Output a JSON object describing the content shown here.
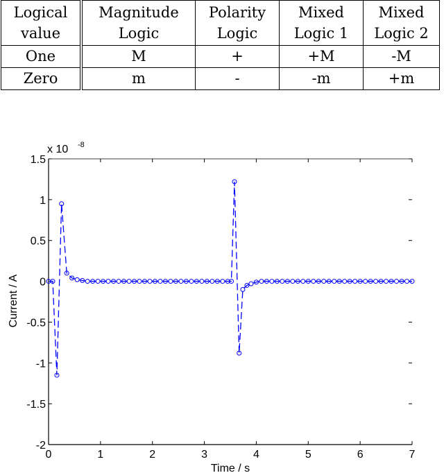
{
  "table": {
    "headers": [
      [
        "Logical",
        "value"
      ],
      [
        "Magnitude",
        "Logic"
      ],
      [
        "Polarity",
        "Logic"
      ],
      [
        "Mixed",
        "Logic 1"
      ],
      [
        "Mixed",
        "Logic 2"
      ]
    ],
    "rows": [
      [
        "One",
        "M",
        "+",
        "+M",
        "-M"
      ],
      [
        "Zero",
        "m",
        "-",
        "-m",
        "+m"
      ]
    ]
  },
  "chart_data": {
    "type": "line",
    "title": "",
    "xlabel": "Time / s",
    "ylabel": "Current / A",
    "y_exponent_base": "x 10",
    "y_exponent_power": "-8",
    "xlim": [
      0,
      7
    ],
    "ylim": [
      -2,
      1.5
    ],
    "xticks": [
      0,
      1,
      2,
      3,
      4,
      5,
      6,
      7
    ],
    "yticks": [
      1.5,
      1,
      0.5,
      0,
      -0.5,
      -1,
      -1.5,
      -2
    ],
    "grid": false,
    "series": [
      {
        "name": "current",
        "color": "#0000ff",
        "line_style": "dashed",
        "marker": "circle",
        "x": [
          0,
          0.08,
          0.16,
          0.25,
          0.35,
          0.45,
          0.55,
          0.65,
          0.75,
          0.85,
          0.95,
          1.05,
          1.15,
          1.25,
          1.35,
          1.45,
          1.55,
          1.65,
          1.75,
          1.85,
          1.95,
          2.05,
          2.15,
          2.25,
          2.35,
          2.45,
          2.55,
          2.65,
          2.75,
          2.85,
          2.95,
          3.05,
          3.15,
          3.25,
          3.35,
          3.45,
          3.52,
          3.58,
          3.67,
          3.74,
          3.82,
          3.9,
          4.0,
          4.1,
          4.2,
          4.3,
          4.4,
          4.5,
          4.6,
          4.7,
          4.8,
          4.9,
          5.0,
          5.1,
          5.2,
          5.3,
          5.4,
          5.5,
          5.6,
          5.7,
          5.8,
          5.9,
          6.0,
          6.1,
          6.2,
          6.3,
          6.4,
          6.5,
          6.6,
          6.7,
          6.8,
          6.9,
          7.0
        ],
        "y": [
          0,
          0,
          -1.15,
          0.95,
          0.1,
          0.04,
          0.02,
          0.01,
          0,
          0,
          0,
          0,
          0,
          0,
          0,
          0,
          0,
          0,
          0,
          0,
          0,
          0,
          0,
          0,
          0,
          0,
          0,
          0,
          0,
          0,
          0,
          0,
          0,
          0,
          0,
          0,
          0,
          1.22,
          -0.88,
          -0.1,
          -0.05,
          -0.03,
          -0.01,
          0,
          0,
          0,
          0,
          0,
          0,
          0,
          0,
          0,
          0,
          0,
          0,
          0,
          0,
          0,
          0,
          0,
          0,
          0,
          0,
          0,
          0,
          0,
          0,
          0,
          0,
          0,
          0,
          0,
          0
        ]
      }
    ]
  }
}
